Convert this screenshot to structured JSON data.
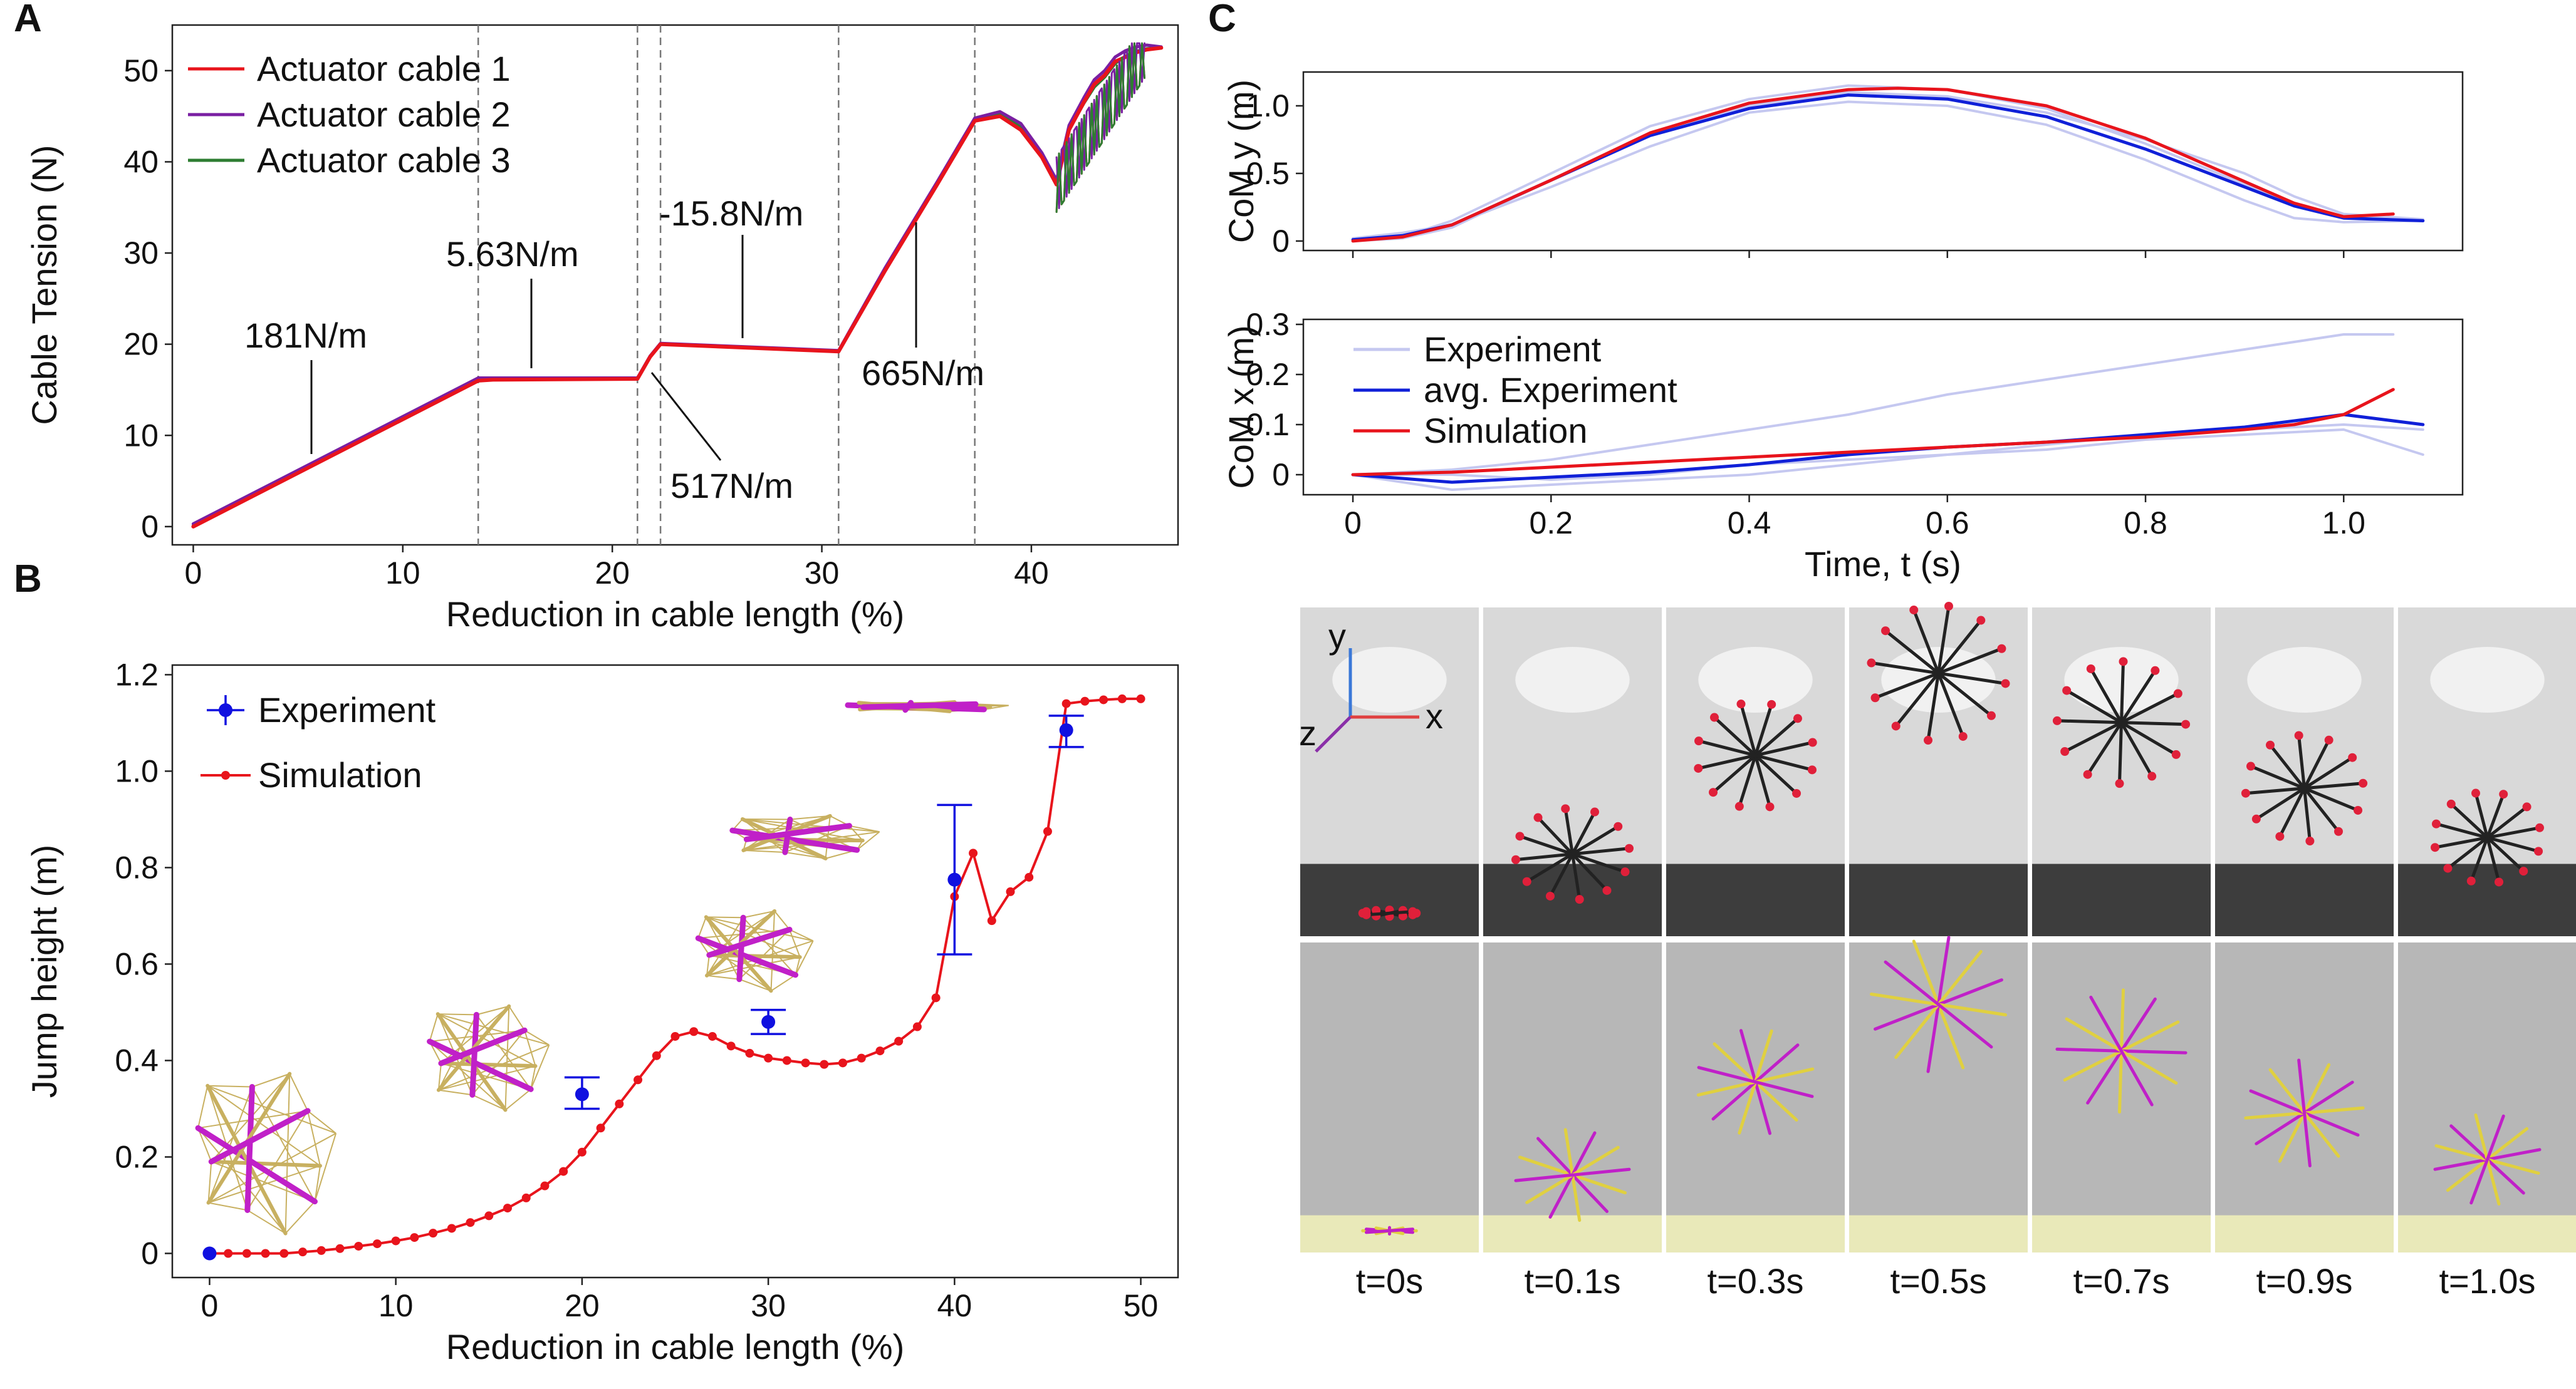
{
  "panels": [
    "A",
    "B",
    "C"
  ],
  "colors": {
    "cable1": "#e8141c",
    "cable2": "#7a1fa2",
    "cable3": "#2e7d32",
    "experiment_light": "#c5c8f0",
    "experiment_avg": "#1020d8",
    "simulation": "#e8141c",
    "experiment_marker": "#1010e0",
    "strut_magenta": "#c020c8",
    "cable_tan": "#c8b060"
  },
  "chart_data": [
    {
      "id": "A",
      "type": "line",
      "xlabel": "Reduction in cable length (%)",
      "ylabel": "Cable  Tension (N)",
      "xlim": [
        -1,
        47
      ],
      "ylim": [
        -2,
        55
      ],
      "xticks": [
        0,
        10,
        20,
        30,
        40
      ],
      "yticks": [
        0,
        10,
        20,
        30,
        40,
        50
      ],
      "legend_position": "top-left",
      "vlines": [
        13.6,
        21.2,
        22.3,
        30.8,
        37.3
      ],
      "series": [
        {
          "name": "Actuator cable 1",
          "color": "#e8141c",
          "x": [
            0,
            13.6,
            14.3,
            21.2,
            21.8,
            22.3,
            30.8,
            33.0,
            35.5,
            37.3,
            38.5,
            39.5,
            40.5,
            41.2,
            41.8,
            42.5,
            43.0,
            43.5,
            44.0,
            44.5,
            45.0,
            45.5,
            46.2
          ],
          "y": [
            0,
            16.0,
            16.1,
            16.2,
            18.6,
            20.0,
            19.2,
            28.0,
            37.5,
            44.5,
            45.0,
            43.5,
            40.5,
            37.5,
            43.5,
            46.5,
            48.5,
            49.5,
            51.0,
            51.5,
            52.0,
            52.3,
            52.5
          ]
        },
        {
          "name": "Actuator cable 2",
          "color": "#7a1fa2",
          "x": [
            0,
            13.6,
            14.3,
            21.2,
            21.8,
            22.3,
            30.8,
            33.0,
            35.5,
            37.3,
            38.5,
            39.5,
            40.5,
            41.2,
            41.8,
            42.5,
            43.0,
            43.5,
            44.0,
            44.5,
            45.0,
            45.5,
            46.2
          ],
          "y": [
            0.3,
            16.3,
            16.3,
            16.3,
            18.7,
            20.1,
            19.3,
            28.3,
            37.8,
            44.8,
            45.5,
            44.2,
            41.0,
            38.0,
            44.0,
            47.0,
            49.0,
            50.0,
            51.5,
            52.2,
            52.6,
            52.8,
            52.6
          ]
        },
        {
          "name": "Actuator cable 3",
          "color": "#2e7d32",
          "x": [
            0,
            13.6,
            14.3,
            21.2,
            21.8,
            22.3,
            30.8,
            33.0,
            35.5,
            37.3,
            38.5,
            39.5,
            40.5,
            41.2,
            41.8,
            42.5,
            43.0,
            43.5,
            44.0,
            44.5,
            45.0,
            45.5,
            46.2
          ],
          "y": [
            0.1,
            16.1,
            16.2,
            16.2,
            18.6,
            20.0,
            19.2,
            28.1,
            37.6,
            44.6,
            45.2,
            43.8,
            40.7,
            37.7,
            43.6,
            46.4,
            48.2,
            49.3,
            50.8,
            51.6,
            52.1,
            52.4,
            52.5
          ]
        }
      ],
      "annotations": [
        {
          "text": "181N/m",
          "x": 5,
          "y": 7
        },
        {
          "text": "5.63N/m",
          "x": 17,
          "y": 16.5
        },
        {
          "text": "517N/m",
          "x": 21.5,
          "y": 17.5
        },
        {
          "text": "-15.8N/m",
          "x": 26,
          "y": 21
        },
        {
          "text": "665N/m",
          "x": 34.8,
          "y": 34
        }
      ]
    },
    {
      "id": "B",
      "type": "scatter",
      "xlabel": "Reduction in cable length (%)",
      "ylabel": "Jump height (m)",
      "xlim": [
        -2,
        52
      ],
      "ylim": [
        -0.05,
        1.22
      ],
      "xticks": [
        0,
        10,
        20,
        30,
        40,
        50
      ],
      "yticks": [
        0,
        0.2,
        0.4,
        0.6,
        0.8,
        1.0,
        1.2
      ],
      "yticklabels": [
        "0",
        "0.2",
        "0.4",
        "0.6",
        "0.8",
        "1.0",
        "1.2"
      ],
      "legend_position": "top-left",
      "series": [
        {
          "name": "Experiment",
          "color": "#1010e0",
          "x": [
            0,
            20,
            30,
            40,
            46
          ],
          "y": [
            0.0,
            0.33,
            0.48,
            0.775,
            1.085
          ],
          "err_low": [
            0.0,
            0.03,
            0.025,
            0.155,
            0.035
          ],
          "err_high": [
            0.0,
            0.035,
            0.025,
            0.155,
            0.03
          ]
        },
        {
          "name": "Simulation",
          "color": "#e8141c",
          "x": [
            0,
            1,
            2,
            3,
            4,
            5,
            6,
            7,
            8,
            9,
            10,
            11,
            12,
            13,
            14,
            15,
            16,
            17,
            18,
            19,
            20,
            21,
            22,
            23,
            24,
            25,
            26,
            27,
            28,
            29,
            30,
            31,
            32,
            33,
            34,
            35,
            36,
            37,
            38,
            39,
            40,
            41,
            42,
            43,
            44,
            45,
            46,
            47,
            48,
            49,
            50
          ],
          "y": [
            0,
            0,
            0,
            0,
            0,
            0.003,
            0.006,
            0.01,
            0.015,
            0.02,
            0.026,
            0.033,
            0.042,
            0.052,
            0.064,
            0.078,
            0.094,
            0.115,
            0.14,
            0.17,
            0.21,
            0.26,
            0.31,
            0.36,
            0.41,
            0.45,
            0.46,
            0.45,
            0.43,
            0.415,
            0.405,
            0.4,
            0.395,
            0.392,
            0.395,
            0.405,
            0.42,
            0.44,
            0.47,
            0.53,
            0.74,
            0.83,
            0.69,
            0.75,
            0.78,
            0.875,
            1.14,
            1.145,
            1.148,
            1.15,
            1.15
          ]
        }
      ]
    },
    {
      "id": "C-top",
      "type": "line",
      "xlabel": "",
      "ylabel": "CoM y (m)",
      "xlim": [
        -0.05,
        1.12
      ],
      "ylim": [
        -0.07,
        1.25
      ],
      "xticks": [
        0,
        0.2,
        0.4,
        0.6,
        0.8,
        1.0
      ],
      "yticks": [
        0,
        0.5,
        1.0
      ],
      "yticklabels": [
        "0",
        "0.5",
        "1.0"
      ],
      "series": [
        {
          "name": "Experiment",
          "color": "#c5c8f0",
          "x": [
            0,
            0.05,
            0.1,
            0.2,
            0.3,
            0.4,
            0.5,
            0.6,
            0.7,
            0.8,
            0.9,
            0.95,
            1.0,
            1.08
          ],
          "y": [
            0,
            0.03,
            0.15,
            0.5,
            0.85,
            1.05,
            1.15,
            1.12,
            0.98,
            0.72,
            0.42,
            0.28,
            0.18,
            0.15
          ]
        },
        {
          "name": "Experiment",
          "color": "#c5c8f0",
          "x": [
            0,
            0.05,
            0.1,
            0.2,
            0.3,
            0.4,
            0.5,
            0.6,
            0.7,
            0.8,
            0.9,
            0.95,
            1.0,
            1.08
          ],
          "y": [
            0.02,
            0.06,
            0.12,
            0.4,
            0.7,
            0.95,
            1.03,
            1.0,
            0.86,
            0.6,
            0.3,
            0.17,
            0.14,
            0.15
          ]
        },
        {
          "name": "Experiment",
          "color": "#c5c8f0",
          "x": [
            0,
            0.05,
            0.1,
            0.2,
            0.3,
            0.4,
            0.5,
            0.6,
            0.7,
            0.8,
            0.9,
            0.95,
            1.0,
            1.08
          ],
          "y": [
            0,
            0.02,
            0.1,
            0.45,
            0.8,
            1.0,
            1.1,
            1.07,
            0.95,
            0.75,
            0.5,
            0.33,
            0.2,
            0.16
          ]
        },
        {
          "name": "avg. Experiment",
          "color": "#1020d8",
          "x": [
            0,
            0.05,
            0.1,
            0.2,
            0.3,
            0.4,
            0.5,
            0.6,
            0.7,
            0.8,
            0.9,
            0.95,
            1.0,
            1.08
          ],
          "y": [
            0.01,
            0.04,
            0.12,
            0.45,
            0.78,
            0.98,
            1.08,
            1.05,
            0.92,
            0.68,
            0.4,
            0.26,
            0.17,
            0.15
          ]
        },
        {
          "name": "Simulation",
          "color": "#e8141c",
          "x": [
            0,
            0.05,
            0.1,
            0.2,
            0.3,
            0.4,
            0.5,
            0.55,
            0.6,
            0.7,
            0.8,
            0.9,
            0.95,
            1.0,
            1.05
          ],
          "y": [
            0,
            0.03,
            0.12,
            0.45,
            0.8,
            1.02,
            1.12,
            1.13,
            1.12,
            1.0,
            0.76,
            0.44,
            0.28,
            0.18,
            0.2
          ]
        }
      ]
    },
    {
      "id": "C-bottom",
      "type": "line",
      "xlabel": "Time, t (s)",
      "ylabel": "CoM x (m)",
      "xlim": [
        -0.05,
        1.12
      ],
      "ylim": [
        -0.04,
        0.31
      ],
      "xticks": [
        0,
        0.2,
        0.4,
        0.6,
        0.8,
        1.0
      ],
      "xticklabels": [
        "0",
        "0.2",
        "0.4",
        "0.6",
        "0.8",
        "1.0"
      ],
      "yticks": [
        0,
        0.1,
        0.2,
        0.3
      ],
      "yticklabels": [
        "0",
        "0.1",
        "0.2",
        "0.3"
      ],
      "legend_position": "top-left",
      "series": [
        {
          "name": "Experiment",
          "color": "#c5c8f0",
          "x": [
            0,
            0.1,
            0.2,
            0.3,
            0.4,
            0.5,
            0.6,
            0.7,
            0.8,
            0.9,
            1.0,
            1.05
          ],
          "y": [
            0,
            0.01,
            0.03,
            0.06,
            0.09,
            0.12,
            0.16,
            0.19,
            0.22,
            0.25,
            0.28,
            0.28
          ]
        },
        {
          "name": "Experiment",
          "color": "#c5c8f0",
          "x": [
            0,
            0.1,
            0.2,
            0.3,
            0.4,
            0.5,
            0.6,
            0.7,
            0.8,
            0.9,
            1.0,
            1.08
          ],
          "y": [
            0,
            -0.03,
            -0.02,
            -0.01,
            0.0,
            0.02,
            0.04,
            0.05,
            0.07,
            0.08,
            0.09,
            0.04
          ]
        },
        {
          "name": "Experiment",
          "color": "#c5c8f0",
          "x": [
            0,
            0.1,
            0.2,
            0.3,
            0.4,
            0.5,
            0.6,
            0.7,
            0.8,
            0.9,
            1.0,
            1.08
          ],
          "y": [
            0,
            0.0,
            -0.01,
            0.0,
            0.02,
            0.03,
            0.04,
            0.06,
            0.08,
            0.09,
            0.1,
            0.09
          ]
        },
        {
          "name": "avg. Experiment",
          "color": "#1020d8",
          "x": [
            0,
            0.1,
            0.2,
            0.3,
            0.4,
            0.5,
            0.6,
            0.7,
            0.8,
            0.9,
            1.0,
            1.08
          ],
          "y": [
            0,
            -0.015,
            -0.005,
            0.005,
            0.02,
            0.04,
            0.055,
            0.065,
            0.08,
            0.095,
            0.12,
            0.1
          ]
        },
        {
          "name": "Simulation",
          "color": "#e8141c",
          "x": [
            0,
            0.1,
            0.2,
            0.3,
            0.4,
            0.5,
            0.6,
            0.7,
            0.8,
            0.9,
            0.95,
            1.0,
            1.05
          ],
          "y": [
            0,
            0.005,
            0.015,
            0.025,
            0.035,
            0.045,
            0.055,
            0.065,
            0.075,
            0.09,
            0.1,
            0.12,
            0.17
          ]
        }
      ],
      "legend": [
        "Experiment",
        "avg. Experiment",
        "Simulation"
      ]
    }
  ],
  "frames": {
    "labels": [
      "t=0s",
      "t=0.1s",
      "t=0.3s",
      "t=0.5s",
      "t=0.7s",
      "t=0.9s",
      "t=1.0s"
    ],
    "axes_labels": [
      "y",
      "x",
      "z"
    ]
  }
}
